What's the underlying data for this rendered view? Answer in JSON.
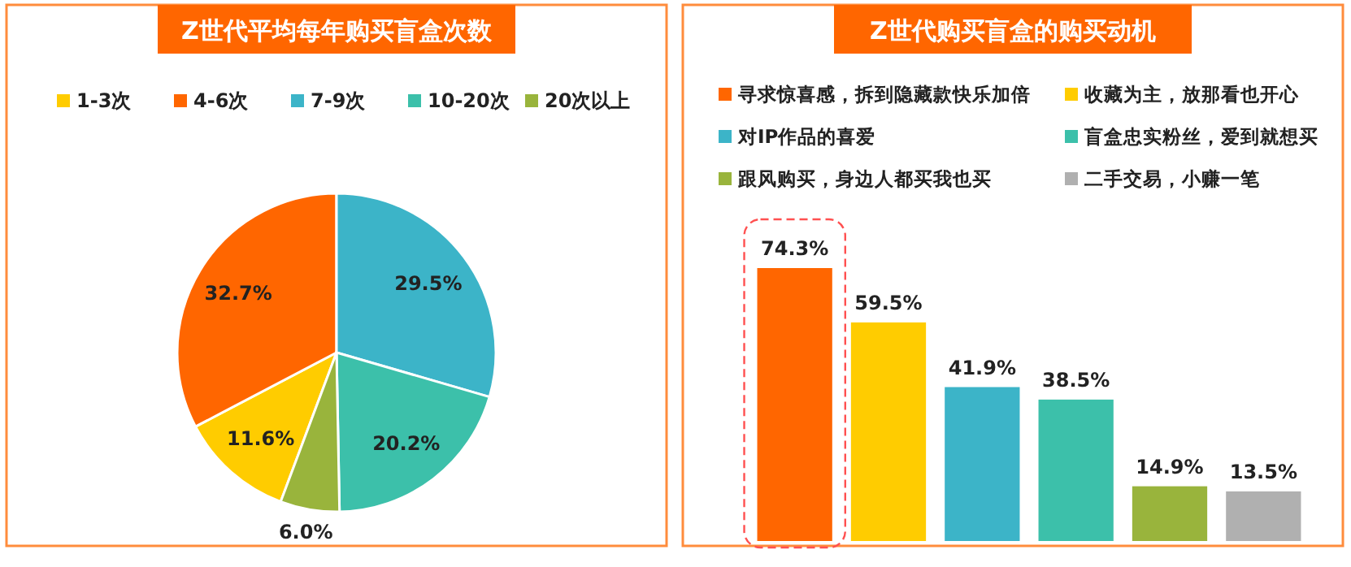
{
  "chart_data": [
    {
      "type": "pie",
      "title": "Z世代平均每年购买盲盒次数",
      "categories": [
        "1-3次",
        "4-6次",
        "7-9次",
        "10-20次",
        "20次以上"
      ],
      "values": [
        11.6,
        32.7,
        29.5,
        20.2,
        6.0
      ],
      "colors": [
        "#ffcc00",
        "#ff6600",
        "#3cb4c8",
        "#3cc0aa",
        "#99b43c"
      ],
      "value_labels": [
        "11.6%",
        "32.7%",
        "29.5%",
        "20.2%",
        "6.0%"
      ],
      "legend": "top"
    },
    {
      "type": "bar",
      "title": "Z世代购买盲盒的购买动机",
      "categories": [
        null,
        null,
        null,
        null,
        null,
        null
      ],
      "legend": "top",
      "stacked": true,
      "series": [
        {
          "name": "寻求惊喜感，拆到隐藏款快乐加倍",
          "color": "#ff6600",
          "values": [
            74.3,
            null,
            null,
            null,
            null,
            null
          ],
          "value_labels": [
            "74.3%",
            null,
            null,
            null,
            null,
            null
          ]
        },
        {
          "name": "收藏为主，放那看也开心",
          "color": "#ffcc00",
          "values": [
            null,
            59.5,
            null,
            null,
            null,
            null
          ],
          "value_labels": [
            null,
            "59.5%",
            null,
            null,
            null,
            null
          ]
        },
        {
          "name": "对IP作品的喜爱",
          "color": "#3cb4c8",
          "values": [
            null,
            null,
            41.9,
            null,
            null,
            null
          ],
          "value_labels": [
            null,
            null,
            "41.9%",
            null,
            null,
            null
          ]
        },
        {
          "name": "盲盒忠实粉丝，爱到就想买",
          "color": "#3cc0aa",
          "values": [
            null,
            null,
            null,
            38.5,
            null,
            null
          ],
          "value_labels": [
            null,
            null,
            null,
            "38.5%",
            null,
            null
          ]
        },
        {
          "name": "跟风购买，身边人都买我也买",
          "color": "#99b43c",
          "values": [
            null,
            null,
            null,
            null,
            14.9,
            null
          ],
          "value_labels": [
            null,
            null,
            null,
            null,
            "14.9%",
            null
          ]
        },
        {
          "name": "二手交易，小赚一笔",
          "color": "#b0b0b0",
          "values": [
            null,
            null,
            null,
            null,
            null,
            13.5
          ],
          "value_labels": [
            null,
            null,
            null,
            null,
            null,
            "13.5%"
          ]
        }
      ]
    }
  ]
}
